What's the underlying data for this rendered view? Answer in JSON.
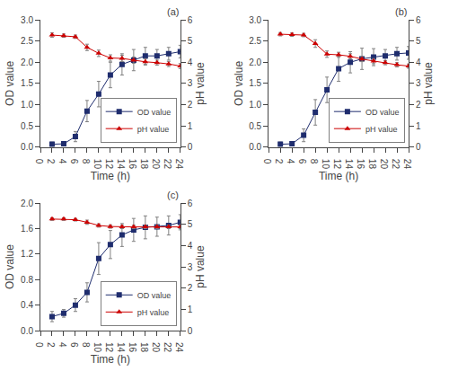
{
  "chart_data": [
    {
      "type": "line",
      "annotations": [
        "(a)"
      ],
      "x": [
        2,
        4,
        6,
        8,
        10,
        12,
        14,
        16,
        18,
        20,
        22,
        24
      ],
      "xlabel": "Time (h)",
      "ylabel": "OD value",
      "y2label": "pH value",
      "xlim": [
        0,
        24
      ],
      "xticks": [
        0,
        2,
        4,
        6,
        8,
        10,
        12,
        14,
        16,
        18,
        20,
        22,
        24
      ],
      "ylim": [
        0,
        3.0
      ],
      "yticks": [
        {
          "value": 0,
          "label": "0.0"
        },
        0.5,
        {
          "value": 1.0,
          "label": "1.0"
        },
        1.5,
        {
          "value": 2.0,
          "label": "2.0"
        },
        2.5,
        {
          "value": 3.0,
          "label": "3.0"
        }
      ],
      "y2lim": [
        0,
        6
      ],
      "y2ticks": [
        0,
        1,
        2,
        3,
        4,
        5,
        6
      ],
      "grid": false,
      "legend": "lower right",
      "series": [
        {
          "name": "OD value",
          "color": "#1f2d6e",
          "marker": "square",
          "values": [
            0.07,
            0.08,
            0.25,
            0.85,
            1.25,
            1.7,
            1.95,
            2.05,
            2.15,
            2.15,
            2.2,
            2.25
          ],
          "errors": [
            0.05,
            0.05,
            0.12,
            0.25,
            0.3,
            0.3,
            0.25,
            0.25,
            0.2,
            0.15,
            0.15,
            0.15
          ]
        },
        {
          "name": "pH value",
          "color": "#cc0000",
          "marker": "triangle-up",
          "axis": "y2",
          "values": [
            5.28,
            5.25,
            5.2,
            4.7,
            4.42,
            4.2,
            4.18,
            4.1,
            4.02,
            3.98,
            3.92,
            3.82
          ],
          "errors": [
            0.1,
            0.08,
            0.08,
            0.15,
            0.15,
            0.15,
            0.15,
            0.15,
            0.15,
            0.12,
            0.12,
            0.12
          ]
        }
      ]
    },
    {
      "type": "line",
      "annotations": [
        "(b)"
      ],
      "x": [
        2,
        4,
        6,
        8,
        10,
        12,
        14,
        16,
        18,
        20,
        22,
        24
      ],
      "xlabel": "Time (h)",
      "ylabel": "OD value",
      "y2label": "pH value",
      "xlim": [
        0,
        24
      ],
      "xticks": [
        0,
        2,
        4,
        6,
        8,
        10,
        12,
        14,
        16,
        18,
        20,
        22,
        24
      ],
      "ylim": [
        0,
        3.0
      ],
      "yticks": [
        {
          "value": 0,
          "label": "0.0"
        },
        0.5,
        {
          "value": 1.0,
          "label": "1.0"
        },
        1.5,
        {
          "value": 2.0,
          "label": "2.0"
        },
        2.5,
        {
          "value": 3.0,
          "label": "3.0"
        }
      ],
      "y2lim": [
        0,
        6
      ],
      "y2ticks": [
        0,
        1,
        2,
        3,
        4,
        5,
        6
      ],
      "grid": false,
      "legend": "lower right",
      "series": [
        {
          "name": "OD value",
          "color": "#1f2d6e",
          "marker": "square",
          "values": [
            0.07,
            0.08,
            0.28,
            0.82,
            1.35,
            1.85,
            2.0,
            2.08,
            2.12,
            2.15,
            2.2,
            2.22
          ],
          "errors": [
            0.05,
            0.05,
            0.15,
            0.3,
            0.3,
            0.3,
            0.25,
            0.25,
            0.2,
            0.15,
            0.15,
            0.15
          ]
        },
        {
          "name": "pH value",
          "color": "#cc0000",
          "marker": "triangle-up",
          "axis": "y2",
          "values": [
            5.32,
            5.3,
            5.28,
            4.88,
            4.38,
            4.35,
            4.28,
            4.15,
            4.05,
            3.98,
            3.88,
            3.82
          ],
          "errors": [
            0.08,
            0.08,
            0.08,
            0.18,
            0.15,
            0.12,
            0.12,
            0.12,
            0.12,
            0.1,
            0.1,
            0.1
          ]
        }
      ]
    },
    {
      "type": "line",
      "annotations": [
        "(c)"
      ],
      "x": [
        2,
        4,
        6,
        8,
        10,
        12,
        14,
        16,
        18,
        20,
        22,
        24
      ],
      "xlabel": "Time (h)",
      "ylabel": "OD value",
      "y2label": "pH value",
      "xlim": [
        0,
        24
      ],
      "xticks": [
        0,
        2,
        4,
        6,
        8,
        10,
        12,
        14,
        16,
        18,
        20,
        22,
        24
      ],
      "ylim": [
        0,
        2.0
      ],
      "yticks": [
        {
          "value": 0.0,
          "label": "0.0"
        },
        0.4,
        0.8,
        1.2,
        1.6,
        {
          "value": 2.0,
          "label": "2.0"
        }
      ],
      "y2lim": [
        0,
        6
      ],
      "y2ticks": [
        0,
        1,
        2,
        3,
        4,
        5,
        6
      ],
      "grid": false,
      "legend": "lower right",
      "series": [
        {
          "name": "OD value",
          "color": "#1f2d6e",
          "marker": "square",
          "values": [
            0.22,
            0.27,
            0.4,
            0.6,
            1.13,
            1.35,
            1.5,
            1.58,
            1.62,
            1.63,
            1.65,
            1.7
          ],
          "errors": [
            0.08,
            0.06,
            0.1,
            0.15,
            0.25,
            0.22,
            0.18,
            0.18,
            0.18,
            0.15,
            0.15,
            0.12
          ]
        },
        {
          "name": "pH value",
          "color": "#cc0000",
          "marker": "triangle-up",
          "axis": "y2",
          "values": [
            5.25,
            5.25,
            5.22,
            5.1,
            4.95,
            4.9,
            4.88,
            4.88,
            4.88,
            4.88,
            4.88,
            4.88
          ],
          "errors": [
            0.06,
            0.06,
            0.06,
            0.1,
            0.08,
            0.08,
            0.08,
            0.08,
            0.08,
            0.08,
            0.08,
            0.08
          ]
        }
      ]
    }
  ]
}
